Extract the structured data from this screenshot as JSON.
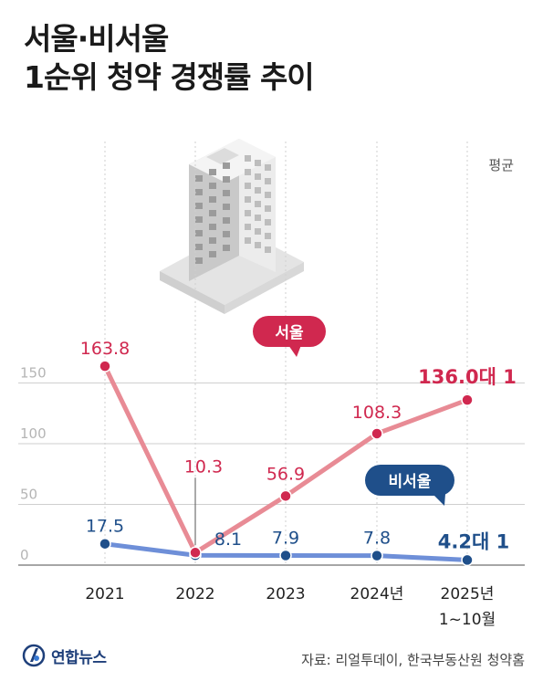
{
  "title_lines": [
    "서울·비서울",
    "1순위 청약 경쟁률 추이"
  ],
  "unit_label": "평균",
  "footer": {
    "logo": "연합뉴스",
    "source": "자료: 리얼투데이, 한국부동산원 청약홈"
  },
  "colors": {
    "seoul": "#d0284f",
    "seoul_line": "#e88b95",
    "non_seoul": "#1f4f8a",
    "non_seoul_line": "#6e8fd8",
    "grid": "#cfcfcf",
    "axis_text": "#b5b5b5"
  },
  "chart_data": {
    "type": "line",
    "categories": [
      "2021",
      "2022",
      "2023",
      "2024년",
      "2025년"
    ],
    "category_sublabels": [
      "",
      "",
      "",
      "",
      "1~10월"
    ],
    "ylim": [
      0,
      170
    ],
    "yticks": [
      0,
      50,
      100,
      150
    ],
    "grid": true,
    "series": [
      {
        "name": "서울",
        "values": [
          163.8,
          10.3,
          56.9,
          108.3,
          136.0
        ],
        "labels": [
          "163.8",
          "10.3",
          "56.9",
          "108.3",
          "136.0대 1"
        ]
      },
      {
        "name": "비서울",
        "values": [
          17.5,
          8.1,
          7.9,
          7.8,
          4.2
        ],
        "labels": [
          "17.5",
          "8.1",
          "7.9",
          "7.8",
          "4.2대 1"
        ]
      }
    ]
  }
}
